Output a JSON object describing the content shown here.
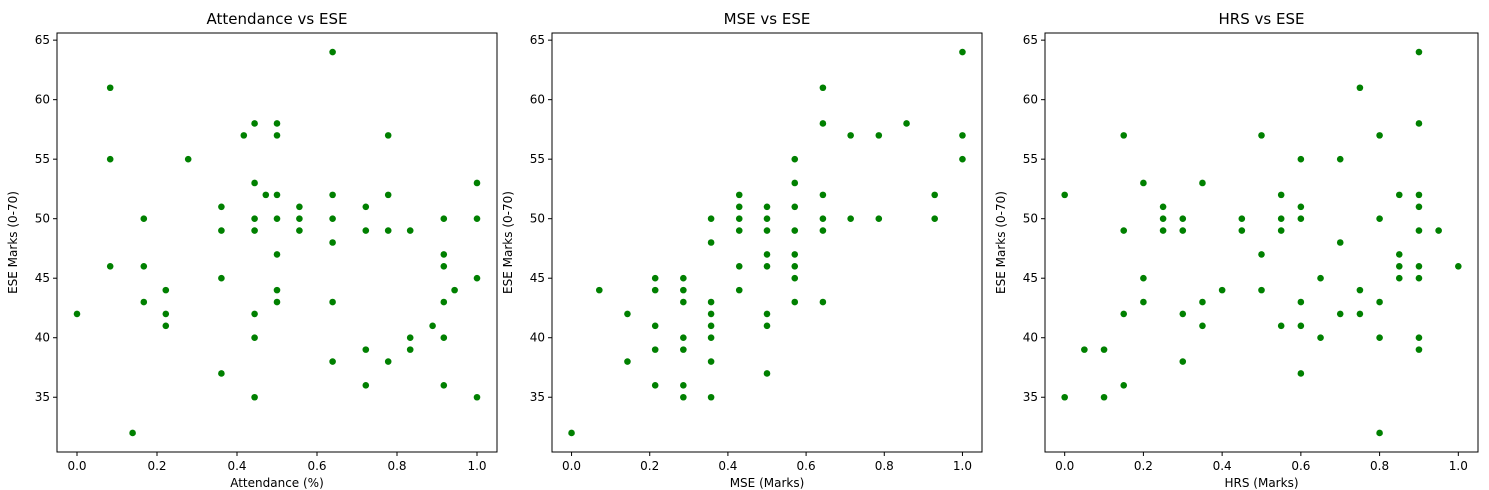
{
  "chart_data": [
    {
      "type": "scatter",
      "title": "Attendance vs ESE",
      "xlabel": "Attendance (%)",
      "ylabel": "ESE Marks (0-70)",
      "xlim": [
        -0.05,
        1.05
      ],
      "ylim": [
        30.4,
        65.6
      ],
      "xticks": [
        0.0,
        0.2,
        0.4,
        0.6,
        0.8,
        1.0
      ],
      "xtick_labels": [
        "0.0",
        "0.2",
        "0.4",
        "0.6",
        "0.8",
        "1.0"
      ],
      "yticks": [
        35,
        40,
        45,
        50,
        55,
        60,
        65
      ],
      "ytick_labels": [
        "35",
        "40",
        "45",
        "50",
        "55",
        "60",
        "65"
      ],
      "grid": false,
      "marker_color": "#008000",
      "points": [
        [
          0.0,
          42
        ],
        [
          0.083,
          61
        ],
        [
          0.083,
          55
        ],
        [
          0.083,
          46
        ],
        [
          0.139,
          32
        ],
        [
          0.167,
          50
        ],
        [
          0.167,
          46
        ],
        [
          0.167,
          43
        ],
        [
          0.222,
          44
        ],
        [
          0.222,
          42
        ],
        [
          0.222,
          41
        ],
        [
          0.278,
          55
        ],
        [
          0.361,
          51
        ],
        [
          0.361,
          49
        ],
        [
          0.361,
          45
        ],
        [
          0.361,
          37
        ],
        [
          0.417,
          57
        ],
        [
          0.444,
          58
        ],
        [
          0.444,
          53
        ],
        [
          0.444,
          50
        ],
        [
          0.444,
          49
        ],
        [
          0.444,
          42
        ],
        [
          0.444,
          40
        ],
        [
          0.444,
          35
        ],
        [
          0.472,
          52
        ],
        [
          0.5,
          58
        ],
        [
          0.5,
          57
        ],
        [
          0.5,
          52
        ],
        [
          0.5,
          50
        ],
        [
          0.5,
          47
        ],
        [
          0.5,
          44
        ],
        [
          0.5,
          43
        ],
        [
          0.556,
          51
        ],
        [
          0.556,
          50
        ],
        [
          0.556,
          49
        ],
        [
          0.639,
          64
        ],
        [
          0.639,
          52
        ],
        [
          0.639,
          50
        ],
        [
          0.639,
          48
        ],
        [
          0.639,
          43
        ],
        [
          0.639,
          38
        ],
        [
          0.722,
          51
        ],
        [
          0.722,
          49
        ],
        [
          0.722,
          39
        ],
        [
          0.722,
          36
        ],
        [
          0.778,
          57
        ],
        [
          0.778,
          52
        ],
        [
          0.778,
          49
        ],
        [
          0.778,
          38
        ],
        [
          0.833,
          49
        ],
        [
          0.833,
          40
        ],
        [
          0.833,
          39
        ],
        [
          0.889,
          41
        ],
        [
          0.917,
          50
        ],
        [
          0.917,
          47
        ],
        [
          0.917,
          46
        ],
        [
          0.917,
          43
        ],
        [
          0.917,
          40
        ],
        [
          0.917,
          36
        ],
        [
          0.944,
          44
        ],
        [
          1.0,
          53
        ],
        [
          1.0,
          50
        ],
        [
          1.0,
          45
        ],
        [
          1.0,
          35
        ]
      ]
    },
    {
      "type": "scatter",
      "title": "MSE vs ESE",
      "xlabel": "MSE (Marks)",
      "ylabel": "ESE Marks (0-70)",
      "xlim": [
        -0.05,
        1.05
      ],
      "ylim": [
        30.4,
        65.6
      ],
      "xticks": [
        0.0,
        0.2,
        0.4,
        0.6,
        0.8,
        1.0
      ],
      "xtick_labels": [
        "0.0",
        "0.2",
        "0.4",
        "0.6",
        "0.8",
        "1.0"
      ],
      "yticks": [
        35,
        40,
        45,
        50,
        55,
        60,
        65
      ],
      "ytick_labels": [
        "35",
        "40",
        "45",
        "50",
        "55",
        "60",
        "65"
      ],
      "grid": false,
      "marker_color": "#008000",
      "points": [
        [
          0.0,
          32
        ],
        [
          0.071,
          44
        ],
        [
          0.143,
          42
        ],
        [
          0.143,
          38
        ],
        [
          0.214,
          45
        ],
        [
          0.214,
          44
        ],
        [
          0.214,
          41
        ],
        [
          0.214,
          39
        ],
        [
          0.214,
          36
        ],
        [
          0.286,
          45
        ],
        [
          0.286,
          44
        ],
        [
          0.286,
          43
        ],
        [
          0.286,
          40
        ],
        [
          0.286,
          39
        ],
        [
          0.286,
          36
        ],
        [
          0.286,
          35
        ],
        [
          0.357,
          50
        ],
        [
          0.357,
          48
        ],
        [
          0.357,
          43
        ],
        [
          0.357,
          42
        ],
        [
          0.357,
          41
        ],
        [
          0.357,
          40
        ],
        [
          0.357,
          38
        ],
        [
          0.357,
          35
        ],
        [
          0.429,
          52
        ],
        [
          0.429,
          51
        ],
        [
          0.429,
          50
        ],
        [
          0.429,
          49
        ],
        [
          0.429,
          46
        ],
        [
          0.429,
          44
        ],
        [
          0.5,
          51
        ],
        [
          0.5,
          50
        ],
        [
          0.5,
          49
        ],
        [
          0.5,
          47
        ],
        [
          0.5,
          46
        ],
        [
          0.5,
          42
        ],
        [
          0.5,
          41
        ],
        [
          0.5,
          37
        ],
        [
          0.571,
          55
        ],
        [
          0.571,
          53
        ],
        [
          0.571,
          51
        ],
        [
          0.571,
          49
        ],
        [
          0.571,
          47
        ],
        [
          0.571,
          46
        ],
        [
          0.571,
          45
        ],
        [
          0.571,
          43
        ],
        [
          0.643,
          61
        ],
        [
          0.643,
          58
        ],
        [
          0.643,
          52
        ],
        [
          0.643,
          50
        ],
        [
          0.643,
          49
        ],
        [
          0.643,
          43
        ],
        [
          0.714,
          57
        ],
        [
          0.714,
          50
        ],
        [
          0.786,
          57
        ],
        [
          0.786,
          50
        ],
        [
          0.857,
          58
        ],
        [
          0.929,
          52
        ],
        [
          0.929,
          50
        ],
        [
          1.0,
          64
        ],
        [
          1.0,
          57
        ],
        [
          1.0,
          55
        ]
      ]
    },
    {
      "type": "scatter",
      "title": "HRS vs ESE",
      "xlabel": "HRS (Marks)",
      "ylabel": "ESE Marks (0-70)",
      "xlim": [
        -0.05,
        1.05
      ],
      "ylim": [
        30.4,
        65.6
      ],
      "xticks": [
        0.0,
        0.2,
        0.4,
        0.6,
        0.8,
        1.0
      ],
      "xtick_labels": [
        "0.0",
        "0.2",
        "0.4",
        "0.6",
        "0.8",
        "1.0"
      ],
      "yticks": [
        35,
        40,
        45,
        50,
        55,
        60,
        65
      ],
      "ytick_labels": [
        "35",
        "40",
        "45",
        "50",
        "55",
        "60",
        "65"
      ],
      "grid": false,
      "marker_color": "#008000",
      "points": [
        [
          0.0,
          52
        ],
        [
          0.0,
          35
        ],
        [
          0.05,
          39
        ],
        [
          0.1,
          39
        ],
        [
          0.1,
          35
        ],
        [
          0.15,
          57
        ],
        [
          0.15,
          49
        ],
        [
          0.15,
          42
        ],
        [
          0.15,
          36
        ],
        [
          0.2,
          53
        ],
        [
          0.2,
          45
        ],
        [
          0.2,
          43
        ],
        [
          0.25,
          51
        ],
        [
          0.25,
          50
        ],
        [
          0.25,
          49
        ],
        [
          0.3,
          50
        ],
        [
          0.3,
          49
        ],
        [
          0.3,
          42
        ],
        [
          0.3,
          38
        ],
        [
          0.35,
          53
        ],
        [
          0.35,
          43
        ],
        [
          0.35,
          41
        ],
        [
          0.4,
          44
        ],
        [
          0.45,
          50
        ],
        [
          0.45,
          49
        ],
        [
          0.5,
          57
        ],
        [
          0.5,
          47
        ],
        [
          0.5,
          44
        ],
        [
          0.55,
          52
        ],
        [
          0.55,
          50
        ],
        [
          0.55,
          49
        ],
        [
          0.55,
          41
        ],
        [
          0.6,
          55
        ],
        [
          0.6,
          51
        ],
        [
          0.6,
          50
        ],
        [
          0.6,
          43
        ],
        [
          0.6,
          41
        ],
        [
          0.6,
          37
        ],
        [
          0.65,
          45
        ],
        [
          0.65,
          40
        ],
        [
          0.7,
          55
        ],
        [
          0.7,
          48
        ],
        [
          0.7,
          42
        ],
        [
          0.75,
          61
        ],
        [
          0.75,
          44
        ],
        [
          0.75,
          42
        ],
        [
          0.8,
          57
        ],
        [
          0.8,
          50
        ],
        [
          0.8,
          43
        ],
        [
          0.8,
          40
        ],
        [
          0.8,
          32
        ],
        [
          0.85,
          52
        ],
        [
          0.85,
          47
        ],
        [
          0.85,
          46
        ],
        [
          0.85,
          45
        ],
        [
          0.9,
          64
        ],
        [
          0.9,
          58
        ],
        [
          0.9,
          52
        ],
        [
          0.9,
          51
        ],
        [
          0.9,
          49
        ],
        [
          0.9,
          46
        ],
        [
          0.9,
          45
        ],
        [
          0.9,
          40
        ],
        [
          0.9,
          39
        ],
        [
          0.95,
          49
        ],
        [
          1.0,
          46
        ]
      ]
    }
  ]
}
